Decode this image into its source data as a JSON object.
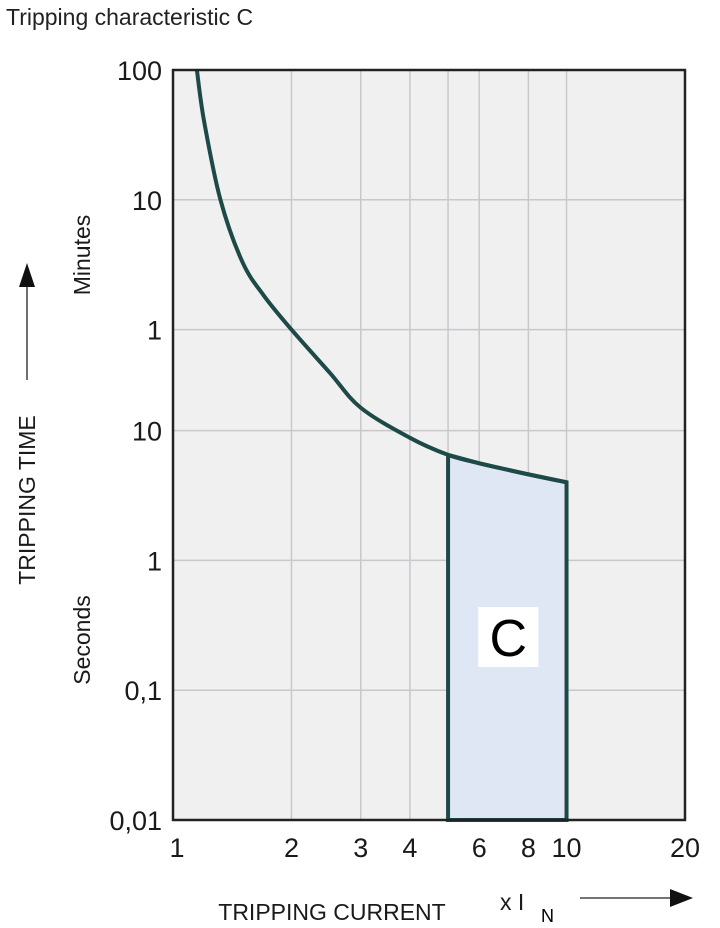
{
  "chart_data": {
    "type": "line",
    "title": "Tripping characteristic C",
    "xlabel": "TRIPPING CURRENT",
    "xunit_prefix": "x I",
    "xunit_sub": "N",
    "ylabel": "TRIPPING TIME",
    "x_scale": "log",
    "y_scale": "log",
    "xlim": [
      1,
      20
    ],
    "ylim_seconds": [
      0.01,
      6000
    ],
    "grid": true,
    "x_ticks": [
      {
        "value": 1,
        "label": "1"
      },
      {
        "value": 2,
        "label": "2"
      },
      {
        "value": 3,
        "label": "3"
      },
      {
        "value": 4,
        "label": "4"
      },
      {
        "value": 6,
        "label": "6"
      },
      {
        "value": 8,
        "label": "8"
      },
      {
        "value": 10,
        "label": "10"
      },
      {
        "value": 20,
        "label": "20"
      }
    ],
    "x_gridlines": [
      2,
      3,
      4,
      5,
      6,
      8,
      10
    ],
    "y_sections": [
      {
        "unit": "Minutes",
        "ticks": [
          {
            "seconds": 6000,
            "label": "100"
          },
          {
            "seconds": 600,
            "label": "10"
          },
          {
            "seconds": 60,
            "label": "1"
          }
        ]
      },
      {
        "unit": "Seconds",
        "ticks": [
          {
            "seconds": 10,
            "label": "10"
          },
          {
            "seconds": 1,
            "label": "1"
          },
          {
            "seconds": 0.1,
            "label": "0,1"
          },
          {
            "seconds": 0.01,
            "label": "0,01"
          }
        ]
      }
    ],
    "curve": {
      "x_multiple_of_IN": [
        1.15,
        1.2,
        1.32,
        1.5,
        1.7,
        2,
        2.5,
        3,
        4,
        5,
        6,
        8,
        10
      ],
      "time_seconds": [
        6000,
        2400,
        600,
        200,
        110,
        60,
        28,
        15,
        8.8,
        6.5,
        5.6,
        4.6,
        4.0
      ]
    },
    "region": {
      "label": "C",
      "x_from": 5,
      "x_to": 10,
      "time_bottom_seconds": 0.01
    },
    "colors": {
      "curve": "#1d4a47",
      "region_fill": "#e0e7f4",
      "plot_bg": "#f0f0f0",
      "grid": "#c8c8cc"
    }
  }
}
